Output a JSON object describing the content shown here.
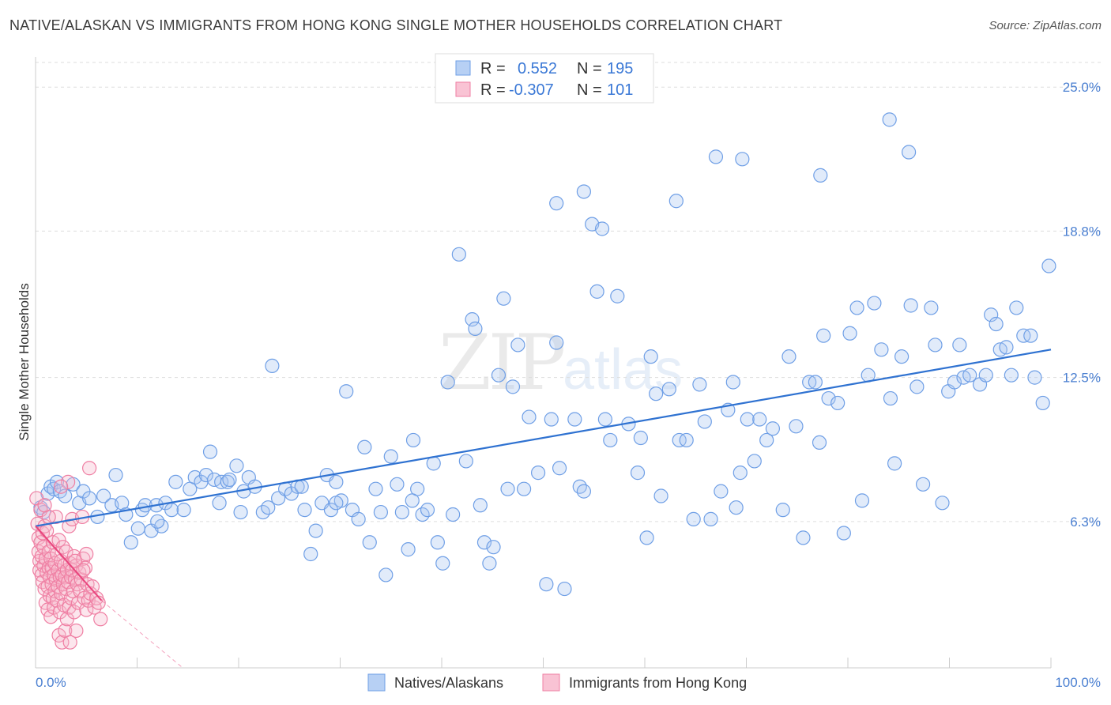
{
  "title": "NATIVE/ALASKAN VS IMMIGRANTS FROM HONG KONG SINGLE MOTHER HOUSEHOLDS CORRELATION CHART",
  "source": "Source: ZipAtlas.com",
  "watermark": "ZIPatlas",
  "colors": {
    "blue": "#6f9fe6",
    "blue_line": "#2f72d1",
    "pink": "#ef7fa3",
    "pink_line": "#e8457d",
    "grid": "#dddddd",
    "text_blue": "#3a78d6"
  },
  "legend": {
    "rows": [
      {
        "r_label": "R =",
        "r_value": "0.552",
        "n_label": "N =",
        "n_value": "195"
      },
      {
        "r_label": "R =",
        "r_value": "-0.307",
        "n_label": "N =",
        "n_value": "101"
      }
    ]
  },
  "chart_data": {
    "type": "scatter",
    "title": "NATIVE/ALASKAN VS IMMIGRANTS FROM HONG KONG SINGLE MOTHER HOUSEHOLDS CORRELATION CHART",
    "xlabel": "",
    "ylabel": "Single Mother Households",
    "xlim": [
      0,
      100
    ],
    "ylim": [
      0,
      26.3
    ],
    "y_ticks": [
      6.3,
      12.5,
      18.8,
      25.0
    ],
    "y_tick_labels": [
      "6.3%",
      "12.5%",
      "18.8%",
      "25.0%"
    ],
    "x_tick_labels": [
      "0.0%",
      "100.0%"
    ],
    "grid": "horizontal dashed",
    "legend_position": "top-center",
    "series": [
      {
        "name": "Natives/Alaskans",
        "color": "#6f9fe6",
        "r": 0.552,
        "n": 195,
        "trend": {
          "x": [
            0,
            100
          ],
          "y": [
            6.1,
            13.7
          ]
        },
        "points": [
          [
            0.5,
            6.9
          ],
          [
            0.8,
            6.7
          ],
          [
            1.2,
            7.5
          ],
          [
            1.5,
            7.8
          ],
          [
            1.8,
            7.7
          ],
          [
            2.1,
            8.0
          ],
          [
            2.4,
            7.6
          ],
          [
            2.9,
            7.4
          ],
          [
            3.7,
            7.9
          ],
          [
            4.3,
            7.1
          ],
          [
            4.7,
            7.6
          ],
          [
            5.3,
            7.3
          ],
          [
            6.1,
            6.5
          ],
          [
            6.7,
            7.4
          ],
          [
            7.5,
            7.0
          ],
          [
            7.9,
            8.3
          ],
          [
            8.5,
            7.1
          ],
          [
            8.9,
            6.6
          ],
          [
            9.4,
            5.4
          ],
          [
            10.1,
            6.0
          ],
          [
            10.5,
            6.8
          ],
          [
            10.8,
            7.0
          ],
          [
            11.4,
            5.9
          ],
          [
            11.9,
            7.0
          ],
          [
            12.4,
            6.1
          ],
          [
            12.8,
            7.1
          ],
          [
            13.4,
            6.8
          ],
          [
            13.8,
            8.0
          ],
          [
            14.6,
            6.8
          ],
          [
            15.2,
            7.7
          ],
          [
            15.7,
            8.2
          ],
          [
            16.3,
            8.0
          ],
          [
            16.8,
            8.3
          ],
          [
            17.2,
            9.3
          ],
          [
            17.6,
            8.1
          ],
          [
            18.3,
            8.0
          ],
          [
            18.9,
            8.0
          ],
          [
            19.1,
            8.1
          ],
          [
            19.8,
            8.7
          ],
          [
            20.2,
            6.7
          ],
          [
            20.5,
            7.6
          ],
          [
            21.0,
            8.2
          ],
          [
            21.6,
            7.8
          ],
          [
            22.4,
            6.7
          ],
          [
            22.9,
            6.9
          ],
          [
            23.3,
            13.0
          ],
          [
            23.9,
            7.3
          ],
          [
            24.6,
            7.7
          ],
          [
            25.2,
            7.5
          ],
          [
            25.8,
            7.8
          ],
          [
            26.2,
            7.8
          ],
          [
            26.5,
            6.8
          ],
          [
            27.1,
            4.9
          ],
          [
            27.6,
            5.9
          ],
          [
            28.2,
            7.1
          ],
          [
            28.7,
            8.3
          ],
          [
            29.1,
            6.8
          ],
          [
            29.6,
            8.0
          ],
          [
            30.1,
            7.2
          ],
          [
            30.6,
            11.9
          ],
          [
            31.2,
            6.8
          ],
          [
            31.8,
            6.4
          ],
          [
            32.4,
            9.5
          ],
          [
            32.9,
            5.4
          ],
          [
            33.5,
            7.7
          ],
          [
            34.0,
            6.7
          ],
          [
            34.5,
            4.0
          ],
          [
            35.0,
            9.1
          ],
          [
            35.6,
            7.9
          ],
          [
            36.1,
            6.7
          ],
          [
            36.7,
            5.1
          ],
          [
            37.2,
            9.8
          ],
          [
            37.6,
            7.7
          ],
          [
            38.1,
            6.6
          ],
          [
            38.6,
            6.8
          ],
          [
            39.2,
            8.8
          ],
          [
            39.6,
            5.4
          ],
          [
            40.1,
            4.5
          ],
          [
            40.6,
            12.3
          ],
          [
            41.1,
            6.6
          ],
          [
            41.7,
            17.8
          ],
          [
            42.4,
            8.9
          ],
          [
            43.0,
            15.0
          ],
          [
            43.3,
            14.6
          ],
          [
            43.8,
            7.0
          ],
          [
            44.2,
            5.4
          ],
          [
            44.7,
            4.5
          ],
          [
            45.1,
            5.2
          ],
          [
            45.6,
            12.6
          ],
          [
            46.1,
            15.9
          ],
          [
            46.5,
            7.7
          ],
          [
            47.0,
            12.1
          ],
          [
            47.5,
            13.9
          ],
          [
            48.1,
            7.7
          ],
          [
            48.6,
            10.8
          ],
          [
            49.5,
            8.4
          ],
          [
            50.3,
            3.6
          ],
          [
            50.8,
            10.7
          ],
          [
            51.3,
            14.0
          ],
          [
            51.6,
            8.6
          ],
          [
            52.1,
            3.4
          ],
          [
            53.1,
            10.7
          ],
          [
            53.6,
            7.8
          ],
          [
            54.0,
            7.6
          ],
          [
            54.8,
            19.1
          ],
          [
            55.3,
            16.2
          ],
          [
            56.1,
            10.7
          ],
          [
            56.6,
            9.8
          ],
          [
            57.3,
            16.0
          ],
          [
            58.4,
            10.5
          ],
          [
            59.3,
            8.4
          ],
          [
            59.6,
            9.9
          ],
          [
            60.2,
            5.6
          ],
          [
            60.6,
            13.4
          ],
          [
            61.1,
            11.8
          ],
          [
            61.6,
            7.4
          ],
          [
            62.4,
            12.0
          ],
          [
            63.4,
            9.8
          ],
          [
            64.1,
            9.8
          ],
          [
            64.8,
            6.4
          ],
          [
            65.4,
            12.2
          ],
          [
            65.9,
            10.6
          ],
          [
            66.5,
            6.4
          ],
          [
            67.0,
            22.0
          ],
          [
            67.5,
            7.6
          ],
          [
            68.2,
            11.1
          ],
          [
            68.7,
            12.3
          ],
          [
            69.0,
            6.9
          ],
          [
            69.4,
            8.4
          ],
          [
            70.1,
            10.7
          ],
          [
            70.8,
            8.9
          ],
          [
            71.3,
            10.7
          ],
          [
            72.0,
            9.8
          ],
          [
            72.6,
            10.3
          ],
          [
            73.6,
            6.8
          ],
          [
            74.2,
            13.4
          ],
          [
            74.9,
            10.4
          ],
          [
            75.6,
            5.6
          ],
          [
            76.2,
            12.3
          ],
          [
            76.8,
            12.3
          ],
          [
            77.2,
            9.7
          ],
          [
            77.6,
            14.3
          ],
          [
            78.1,
            11.6
          ],
          [
            79.0,
            11.4
          ],
          [
            79.6,
            5.8
          ],
          [
            80.2,
            14.4
          ],
          [
            80.9,
            15.5
          ],
          [
            81.4,
            7.2
          ],
          [
            82.0,
            12.6
          ],
          [
            82.6,
            15.7
          ],
          [
            83.3,
            13.7
          ],
          [
            84.2,
            11.6
          ],
          [
            84.6,
            8.8
          ],
          [
            85.3,
            13.4
          ],
          [
            86.2,
            15.6
          ],
          [
            86.8,
            12.1
          ],
          [
            87.4,
            7.9
          ],
          [
            88.2,
            15.5
          ],
          [
            88.6,
            13.9
          ],
          [
            89.3,
            7.1
          ],
          [
            89.9,
            11.9
          ],
          [
            90.5,
            12.3
          ],
          [
            91.0,
            13.9
          ],
          [
            91.4,
            12.5
          ],
          [
            92.0,
            12.6
          ],
          [
            93.0,
            12.2
          ],
          [
            93.6,
            12.6
          ],
          [
            94.1,
            15.2
          ],
          [
            94.6,
            14.8
          ],
          [
            95.0,
            13.7
          ],
          [
            95.6,
            13.8
          ],
          [
            96.1,
            12.6
          ],
          [
            96.6,
            15.5
          ],
          [
            97.3,
            14.3
          ],
          [
            98.0,
            14.3
          ],
          [
            98.4,
            12.5
          ],
          [
            99.2,
            11.4
          ],
          [
            99.8,
            17.3
          ],
          [
            84.1,
            23.6
          ],
          [
            86.0,
            22.2
          ],
          [
            69.6,
            21.9
          ],
          [
            54.0,
            20.5
          ],
          [
            51.3,
            20.0
          ],
          [
            63.1,
            20.1
          ],
          [
            77.3,
            21.2
          ],
          [
            55.8,
            18.9
          ],
          [
            37.1,
            7.2
          ],
          [
            29.6,
            7.1
          ],
          [
            18.1,
            7.1
          ],
          [
            12.0,
            6.3
          ]
        ]
      },
      {
        "name": "Immigrants from Hong Kong",
        "color": "#ef7fa3",
        "r": -0.307,
        "n": 101,
        "trend": {
          "x": [
            0,
            6.5
          ],
          "y": [
            6.1,
            2.9
          ]
        },
        "trend_extension": {
          "x": [
            6.5,
            14.5
          ],
          "y": [
            2.9,
            0
          ]
        },
        "points": [
          [
            0.1,
            7.3
          ],
          [
            0.2,
            6.2
          ],
          [
            0.3,
            5.6
          ],
          [
            0.3,
            5.0
          ],
          [
            0.4,
            4.6
          ],
          [
            0.4,
            4.2
          ],
          [
            0.5,
            6.8
          ],
          [
            0.5,
            5.4
          ],
          [
            0.6,
            4.8
          ],
          [
            0.6,
            4.0
          ],
          [
            0.7,
            5.8
          ],
          [
            0.7,
            3.7
          ],
          [
            0.8,
            5.2
          ],
          [
            0.8,
            4.4
          ],
          [
            0.9,
            6.1
          ],
          [
            0.9,
            3.4
          ],
          [
            1.0,
            4.7
          ],
          [
            1.0,
            2.8
          ],
          [
            1.1,
            5.9
          ],
          [
            1.1,
            4.1
          ],
          [
            1.2,
            3.5
          ],
          [
            1.2,
            2.5
          ],
          [
            1.3,
            5.0
          ],
          [
            1.3,
            4.3
          ],
          [
            1.4,
            3.9
          ],
          [
            1.4,
            3.1
          ],
          [
            1.5,
            4.7
          ],
          [
            1.5,
            2.2
          ],
          [
            1.6,
            4.3
          ],
          [
            1.6,
            3.6
          ],
          [
            1.7,
            5.4
          ],
          [
            1.7,
            3.0
          ],
          [
            1.8,
            4.0
          ],
          [
            1.8,
            2.6
          ],
          [
            1.9,
            4.5
          ],
          [
            1.9,
            3.3
          ],
          [
            2.0,
            6.5
          ],
          [
            2.0,
            3.8
          ],
          [
            2.1,
            4.9
          ],
          [
            2.1,
            2.9
          ],
          [
            2.2,
            4.2
          ],
          [
            2.2,
            3.5
          ],
          [
            2.3,
            5.5
          ],
          [
            2.3,
            1.4
          ],
          [
            2.4,
            3.9
          ],
          [
            2.4,
            2.4
          ],
          [
            2.5,
            4.6
          ],
          [
            2.5,
            3.2
          ],
          [
            2.6,
            4.0
          ],
          [
            2.6,
            1.1
          ],
          [
            2.7,
            5.2
          ],
          [
            2.7,
            3.6
          ],
          [
            2.8,
            4.4
          ],
          [
            2.8,
            2.7
          ],
          [
            2.9,
            3.9
          ],
          [
            2.9,
            1.6
          ],
          [
            3.0,
            5.0
          ],
          [
            3.0,
            3.4
          ],
          [
            3.1,
            4.2
          ],
          [
            3.1,
            2.1
          ],
          [
            3.2,
            8.0
          ],
          [
            3.2,
            3.7
          ],
          [
            3.3,
            6.1
          ],
          [
            3.3,
            2.6
          ],
          [
            3.4,
            4.5
          ],
          [
            3.4,
            1.1
          ],
          [
            3.5,
            3.9
          ],
          [
            3.5,
            3.0
          ],
          [
            3.6,
            6.4
          ],
          [
            3.6,
            4.2
          ],
          [
            3.7,
            3.3
          ],
          [
            3.8,
            4.8
          ],
          [
            3.8,
            2.4
          ],
          [
            3.9,
            3.8
          ],
          [
            4.0,
            4.4
          ],
          [
            4.0,
            1.6
          ],
          [
            4.1,
            3.6
          ],
          [
            4.2,
            2.8
          ],
          [
            4.3,
            4.1
          ],
          [
            4.4,
            3.3
          ],
          [
            4.5,
            3.8
          ],
          [
            4.6,
            6.5
          ],
          [
            4.7,
            4.7
          ],
          [
            4.8,
            3.0
          ],
          [
            4.9,
            4.3
          ],
          [
            5.0,
            2.5
          ],
          [
            5.1,
            3.6
          ],
          [
            5.2,
            2.9
          ],
          [
            5.3,
            8.6
          ],
          [
            5.4,
            3.2
          ],
          [
            5.6,
            3.5
          ],
          [
            5.8,
            2.6
          ],
          [
            6.0,
            3.0
          ],
          [
            6.2,
            2.8
          ],
          [
            5.0,
            4.9
          ],
          [
            2.5,
            7.8
          ],
          [
            1.3,
            6.5
          ],
          [
            0.9,
            7.0
          ],
          [
            3.9,
            4.6
          ],
          [
            4.7,
            4.2
          ],
          [
            6.4,
            2.1
          ]
        ]
      }
    ]
  },
  "bottom_legend": [
    {
      "label": "Natives/Alaskans",
      "color": "#6f9fe6"
    },
    {
      "label": "Immigrants from Hong Kong",
      "color": "#ef7fa3"
    }
  ]
}
